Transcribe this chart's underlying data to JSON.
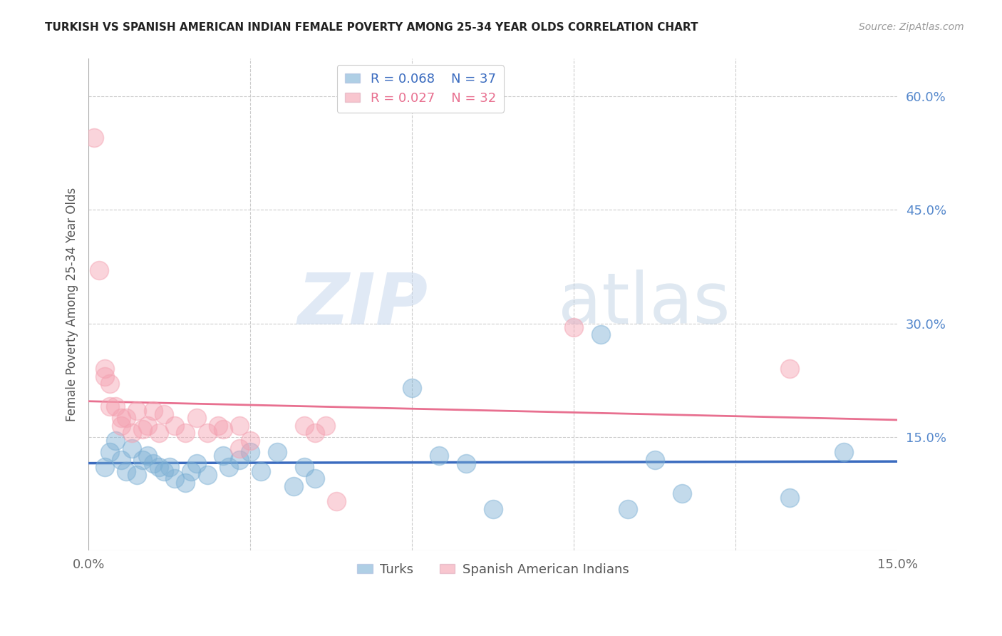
{
  "title": "TURKISH VS SPANISH AMERICAN INDIAN FEMALE POVERTY AMONG 25-34 YEAR OLDS CORRELATION CHART",
  "source": "Source: ZipAtlas.com",
  "ylabel": "Female Poverty Among 25-34 Year Olds",
  "legend_labels": [
    "Turks",
    "Spanish American Indians"
  ],
  "r_turks": 0.068,
  "n_turks": 37,
  "r_spanish": 0.027,
  "n_spanish": 32,
  "xlim": [
    0.0,
    0.15
  ],
  "ylim": [
    0.0,
    0.65
  ],
  "yticks_right": [
    0.15,
    0.3,
    0.45,
    0.6
  ],
  "ytick_labels_right": [
    "15.0%",
    "30.0%",
    "45.0%",
    "60.0%"
  ],
  "color_turks": "#7bafd4",
  "color_spanish": "#f4a0b0",
  "trendline_color_turks": "#3a6bbf",
  "trendline_color_spanish": "#e87090",
  "watermark_zip": "ZIP",
  "watermark_atlas": "atlas",
  "turks_x": [
    0.003,
    0.004,
    0.005,
    0.006,
    0.007,
    0.008,
    0.009,
    0.01,
    0.011,
    0.012,
    0.013,
    0.014,
    0.015,
    0.016,
    0.018,
    0.019,
    0.02,
    0.022,
    0.025,
    0.026,
    0.028,
    0.03,
    0.032,
    0.035,
    0.038,
    0.04,
    0.042,
    0.06,
    0.065,
    0.07,
    0.075,
    0.095,
    0.1,
    0.105,
    0.11,
    0.13,
    0.14
  ],
  "turks_y": [
    0.11,
    0.13,
    0.145,
    0.12,
    0.105,
    0.135,
    0.1,
    0.12,
    0.125,
    0.115,
    0.11,
    0.105,
    0.11,
    0.095,
    0.09,
    0.105,
    0.115,
    0.1,
    0.125,
    0.11,
    0.12,
    0.13,
    0.105,
    0.13,
    0.085,
    0.11,
    0.095,
    0.215,
    0.125,
    0.115,
    0.055,
    0.285,
    0.055,
    0.12,
    0.075,
    0.07,
    0.13
  ],
  "spanish_x": [
    0.001,
    0.002,
    0.003,
    0.003,
    0.004,
    0.004,
    0.005,
    0.006,
    0.006,
    0.007,
    0.008,
    0.009,
    0.01,
    0.011,
    0.012,
    0.013,
    0.014,
    0.016,
    0.018,
    0.02,
    0.022,
    0.024,
    0.025,
    0.028,
    0.028,
    0.03,
    0.04,
    0.042,
    0.044,
    0.046,
    0.09,
    0.13
  ],
  "spanish_y": [
    0.545,
    0.37,
    0.23,
    0.24,
    0.22,
    0.19,
    0.19,
    0.175,
    0.165,
    0.175,
    0.155,
    0.185,
    0.16,
    0.165,
    0.185,
    0.155,
    0.18,
    0.165,
    0.155,
    0.175,
    0.155,
    0.165,
    0.16,
    0.165,
    0.135,
    0.145,
    0.165,
    0.155,
    0.165,
    0.065,
    0.295,
    0.24
  ],
  "background_color": "#ffffff",
  "grid_color": "#cccccc",
  "title_fontsize": 11,
  "axis_label_fontsize": 12,
  "tick_fontsize": 13,
  "legend_fontsize": 12
}
